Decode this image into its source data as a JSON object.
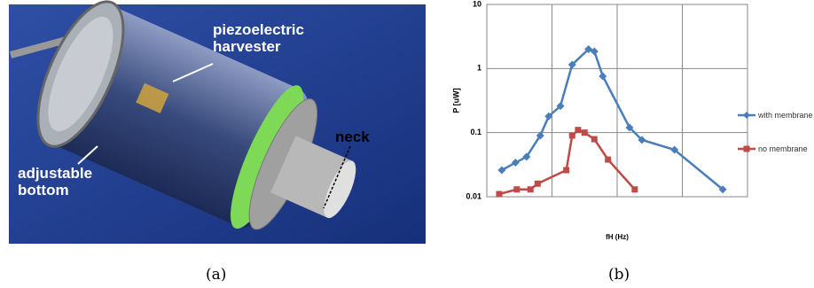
{
  "photo": {
    "labels": [
      "piezoelectric harvester",
      "adjustable bottom",
      "neck"
    ]
  },
  "captions": [
    "(a)",
    "(b)"
  ],
  "chart_data": {
    "type": "line",
    "y_label": "P [uW]",
    "x_label": "fH (Hz)",
    "log_y": true,
    "grid": true,
    "legend": "right",
    "xlim": [
      0,
      4
    ],
    "ylim": [
      0.01,
      10
    ],
    "yticks": [
      0.01,
      0.1,
      1,
      10
    ],
    "series": [
      {
        "name": "with membrane",
        "color": "#4a7ebb",
        "marker": "diamond",
        "x": [
          0.23,
          0.44,
          0.61,
          0.82,
          0.95,
          1.13,
          1.31,
          1.56,
          1.65,
          1.78,
          2.19,
          2.38,
          2.88,
          3.62
        ],
        "values": [
          0.026,
          0.034,
          0.042,
          0.09,
          0.18,
          0.26,
          1.15,
          2.0,
          1.85,
          0.76,
          0.12,
          0.077,
          0.054,
          0.013
        ]
      },
      {
        "name": "no membrane",
        "color": "#be4b48",
        "marker": "square",
        "x": [
          0.19,
          0.46,
          0.67,
          0.78,
          1.22,
          1.31,
          1.4,
          1.5,
          1.65,
          1.86,
          2.27
        ],
        "values": [
          0.011,
          0.013,
          0.013,
          0.016,
          0.026,
          0.09,
          0.11,
          0.1,
          0.079,
          0.038,
          0.013
        ]
      }
    ]
  }
}
